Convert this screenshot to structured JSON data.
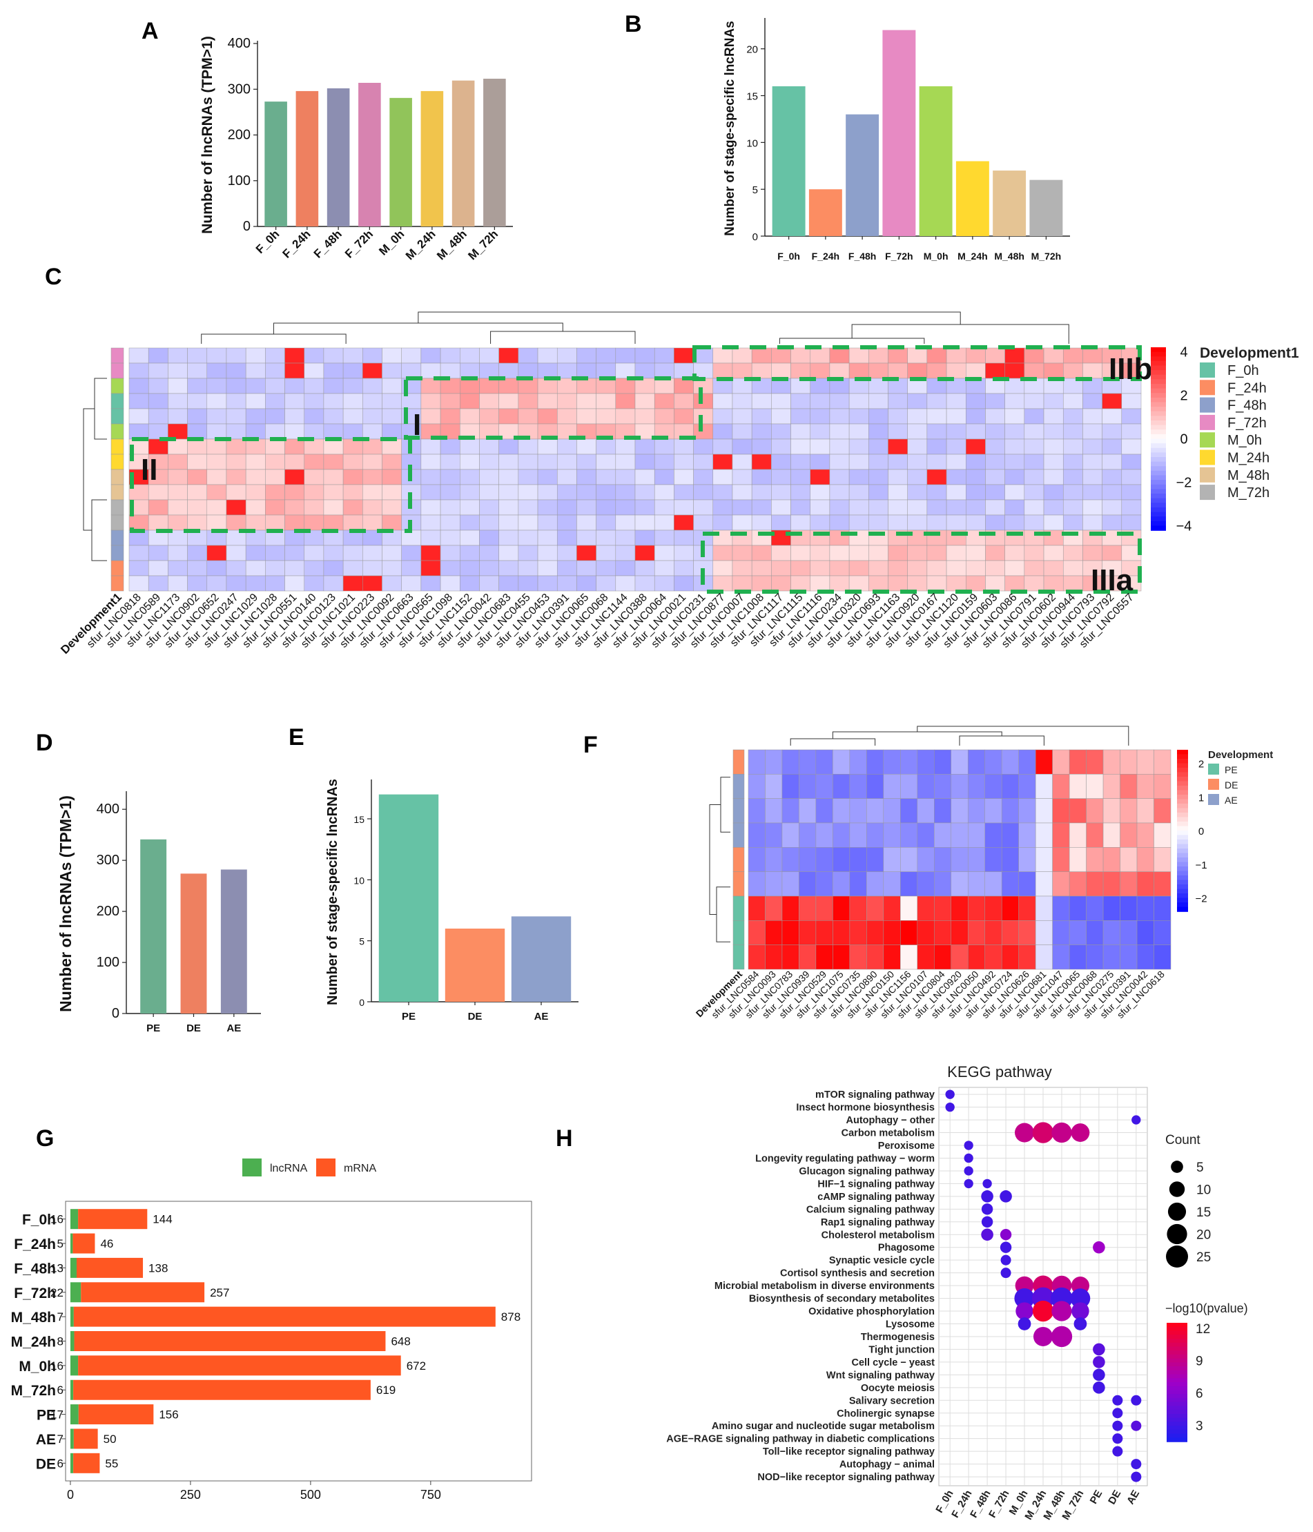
{
  "colors": {
    "stage": {
      "F_0h": "#66c2a5",
      "F_24h": "#fc8d62",
      "F_48h": "#8da0cb",
      "F_72h": "#e78ac3",
      "M_0h": "#a6d854",
      "M_24h": "#ffd92f",
      "M_48h": "#e5c494",
      "M_72h": "#b3b3b3"
    },
    "A": [
      "#6aae8e",
      "#ee8060",
      "#8c8eb1",
      "#d783b0",
      "#91c45a",
      "#f1c44c",
      "#dcb38e",
      "#ab9e99"
    ],
    "D": [
      "#6aae8e",
      "#ee8060",
      "#8c8eb1"
    ],
    "lncRNA": "#4caf50",
    "mRNA": "#ff5722",
    "cluster_box": "#20b050"
  },
  "chart_data": [
    {
      "panel": "A",
      "type": "bar",
      "categories": [
        "F_0h",
        "F_24h",
        "F_48h",
        "F_72h",
        "M_0h",
        "M_24h",
        "M_48h",
        "M_72h"
      ],
      "values": [
        273,
        296,
        302,
        314,
        281,
        296,
        319,
        323
      ],
      "ylabel": "Number of lncRNAs (TPM>1)",
      "ylim": [
        0,
        400
      ],
      "yticks": [
        "0",
        "100",
        "200",
        "300",
        "400"
      ]
    },
    {
      "panel": "B",
      "type": "bar",
      "categories": [
        "F_0h",
        "F_24h",
        "F_48h",
        "F_72h",
        "M_0h",
        "M_24h",
        "M_48h",
        "M_72h"
      ],
      "values": [
        16,
        5,
        13,
        22,
        16,
        8,
        7,
        6
      ],
      "ylabel": "Number of stage-specific lncRNAs",
      "ylim": [
        0,
        23
      ],
      "yticks": [
        "0",
        "5",
        "10",
        "15",
        "20"
      ]
    },
    {
      "panel": "C",
      "type": "heatmap",
      "annotation_label": "Development1",
      "legend_title": "Development1",
      "legend_items": [
        "F_0h",
        "F_24h",
        "F_48h",
        "F_72h",
        "M_0h",
        "M_24h",
        "M_48h",
        "M_72h"
      ],
      "scale_ticks": [
        "4",
        "2",
        "0",
        "−2",
        "−4"
      ],
      "row_groups": [
        "F_72h",
        "F_72h",
        "M_0h",
        "F_0h",
        "F_0h",
        "M_0h",
        "M_24h",
        "M_24h",
        "M_48h",
        "M_48h",
        "M_72h",
        "M_72h",
        "F_48h",
        "F_48h",
        "F_24h",
        "F_24h"
      ],
      "columns": [
        "sfur_LNC0818",
        "sfur_LNC0589",
        "sfur_LNC1173",
        "sfur_LNC0902",
        "sfur_LNC0652",
        "sfur_LNC0247",
        "sfur_LNC1029",
        "sfur_LNC1028",
        "sfur_LNC0551",
        "sfur_LNC0140",
        "sfur_LNC0123",
        "sfur_LNC1021",
        "sfur_LNC0223",
        "sfur_LNC0092",
        "sfur_LNC0663",
        "sfur_LNC0565",
        "sfur_LNC1098",
        "sfur_LNC1152",
        "sfur_LNC0042",
        "sfur_LNC0683",
        "sfur_LNC0455",
        "sfur_LNC0453",
        "sfur_LNC0391",
        "sfur_LNC0065",
        "sfur_LNC0068",
        "sfur_LNC1144",
        "sfur_LNC0388",
        "sfur_LNC0064",
        "sfur_LNC0021",
        "sfur_LNC0231",
        "sfur_LNC0877",
        "sfur_LNC0007",
        "sfur_LNC1008",
        "sfur_LNC1117",
        "sfur_LNC1115",
        "sfur_LNC1116",
        "sfur_LNC0234",
        "sfur_LNC0320",
        "sfur_LNC0693",
        "sfur_LNC1163",
        "sfur_LNC0920",
        "sfur_LNC0167",
        "sfur_LNC1120",
        "sfur_LNC0159",
        "sfur_LNC0603",
        "sfur_LNC0086",
        "sfur_LNC0791",
        "sfur_LNC0602",
        "sfur_LNC0944",
        "sfur_LNC0793",
        "sfur_LNC0792",
        "sfur_LNC0557"
      ],
      "clusters": [
        "I",
        "II",
        "IIIa",
        "IIIb"
      ]
    },
    {
      "panel": "D",
      "type": "bar",
      "categories": [
        "PE",
        "DE",
        "AE"
      ],
      "values": [
        341,
        274,
        282
      ],
      "ylabel": "Number of lncRNAs (TPM>1)",
      "ylim": [
        0,
        430
      ],
      "yticks": [
        "0",
        "100",
        "200",
        "300",
        "400"
      ]
    },
    {
      "panel": "E",
      "type": "bar",
      "categories": [
        "PE",
        "DE",
        "AE"
      ],
      "values": [
        17,
        6,
        7
      ],
      "ylabel": "Number of stage-specific lncRNAs",
      "ylim": [
        0,
        18
      ],
      "yticks": [
        "0",
        "5",
        "10",
        "15"
      ]
    },
    {
      "panel": "F",
      "type": "heatmap",
      "annotation_label": "Development",
      "legend_title": "Development",
      "legend_items": [
        "PE",
        "DE",
        "AE"
      ],
      "scale_ticks": [
        "2",
        "1",
        "0",
        "−1",
        "−2"
      ],
      "row_groups": [
        "DE",
        "AE",
        "AE",
        "AE",
        "DE",
        "DE",
        "PE",
        "PE",
        "PE"
      ],
      "columns": [
        "sfur_LNC0584",
        "sfur_LNC0093",
        "sfur_LNC0783",
        "sfur_LNC0939",
        "sfur_LNC0529",
        "sfur_LNC1075",
        "sfur_LNC0735",
        "sfur_LNC0890",
        "sfur_LNC0150",
        "sfur_LNC1156",
        "sfur_LNC0107",
        "sfur_LNC0804",
        "sfur_LNC0920",
        "sfur_LNC0050",
        "sfur_LNC0492",
        "sfur_LNC0724",
        "sfur_LNC0626",
        "sfur_LNC0681",
        "sfur_LNC1047",
        "sfur_LNC0065",
        "sfur_LNC0068",
        "sfur_LNC0275",
        "sfur_LNC0391",
        "sfur_LNC0042",
        "sfur_LNC0618"
      ]
    },
    {
      "panel": "G",
      "type": "bar",
      "orientation": "horizontal",
      "legend": [
        "lncRNA",
        "mRNA"
      ],
      "categories": [
        "F_0h",
        "F_24h",
        "F_48h",
        "F_72h",
        "M_48h",
        "M_24h",
        "M_0h",
        "M_72h",
        "PE",
        "AE",
        "DE"
      ],
      "series": [
        {
          "name": "lncRNA",
          "values": [
            16,
            5,
            13,
            22,
            7,
            8,
            16,
            6,
            17,
            7,
            6
          ]
        },
        {
          "name": "mRNA",
          "values": [
            144,
            46,
            138,
            257,
            878,
            648,
            672,
            619,
            156,
            50,
            55
          ]
        }
      ],
      "xlim": [
        -10,
        960
      ],
      "xticks": [
        "0",
        "250",
        "500",
        "750"
      ]
    },
    {
      "panel": "H",
      "type": "scatter",
      "title": "KEGG pathway",
      "x": [
        "F_0h",
        "F_24h",
        "F_48h",
        "F_72h",
        "M_0h",
        "M_24h",
        "M_48h",
        "M_72h",
        "PE",
        "DE",
        "AE"
      ],
      "pathways": [
        "mTOR signaling pathway",
        "Insect hormone biosynthesis",
        "Autophagy − other",
        "Carbon metabolism",
        "Peroxisome",
        "Longevity regulating pathway − worm",
        "Glucagon signaling pathway",
        "HIF−1 signaling pathway",
        "cAMP signaling pathway",
        "Calcium signaling pathway",
        "Rap1 signaling pathway",
        "Cholesterol metabolism",
        "Phagosome",
        "Synaptic vesicle cycle",
        "Cortisol synthesis and secretion",
        "Microbial metabolism in diverse environments",
        "Biosynthesis of secondary metabolites",
        "Oxidative phosphorylation",
        "Lysosome",
        "Thermogenesis",
        "Tight junction",
        "Cell cycle − yeast",
        "Wnt signaling pathway",
        "Oocyte meiosis",
        "Salivary secretion",
        "Cholinergic synapse",
        "Amino sugar and nucleotide sugar metabolism",
        "AGE−RAGE signaling pathway in diabetic complications",
        "Toll−like receptor signaling pathway",
        "Autophagy − animal",
        "NOD−like receptor signaling pathway"
      ],
      "points": [
        [
          0,
          0,
          2,
          3
        ],
        [
          0,
          1,
          2,
          3
        ],
        [
          10,
          2,
          2,
          3
        ],
        [
          4,
          3,
          18,
          9
        ],
        [
          5,
          3,
          22,
          10
        ],
        [
          6,
          3,
          20,
          9
        ],
        [
          7,
          3,
          16,
          9
        ],
        [
          1,
          4,
          2,
          3
        ],
        [
          1,
          5,
          2,
          3
        ],
        [
          1,
          6,
          2,
          3
        ],
        [
          1,
          7,
          2,
          3
        ],
        [
          2,
          7,
          2,
          3
        ],
        [
          2,
          8,
          5,
          3
        ],
        [
          3,
          8,
          5,
          3
        ],
        [
          2,
          9,
          4,
          3
        ],
        [
          2,
          10,
          4,
          3
        ],
        [
          2,
          11,
          5,
          4
        ],
        [
          3,
          11,
          4,
          6
        ],
        [
          8,
          12,
          5,
          7
        ],
        [
          3,
          12,
          4,
          3
        ],
        [
          3,
          13,
          3,
          3
        ],
        [
          3,
          14,
          3,
          3
        ],
        [
          4,
          15,
          16,
          9
        ],
        [
          5,
          15,
          20,
          10
        ],
        [
          6,
          15,
          19,
          9
        ],
        [
          7,
          15,
          15,
          9
        ],
        [
          4,
          16,
          20,
          3
        ],
        [
          5,
          16,
          25,
          4
        ],
        [
          6,
          16,
          24,
          3
        ],
        [
          7,
          16,
          19,
          3
        ],
        [
          4,
          17,
          14,
          6
        ],
        [
          5,
          17,
          22,
          12
        ],
        [
          6,
          17,
          20,
          8
        ],
        [
          7,
          17,
          14,
          5
        ],
        [
          4,
          18,
          6,
          3
        ],
        [
          7,
          18,
          6,
          3
        ],
        [
          5,
          19,
          18,
          8
        ],
        [
          6,
          19,
          22,
          8
        ],
        [
          8,
          20,
          5,
          4
        ],
        [
          8,
          21,
          5,
          4
        ],
        [
          8,
          22,
          5,
          3
        ],
        [
          8,
          23,
          5,
          3
        ],
        [
          9,
          24,
          3,
          3
        ],
        [
          10,
          24,
          3,
          3
        ],
        [
          9,
          25,
          3,
          3
        ],
        [
          9,
          26,
          3,
          3
        ],
        [
          10,
          26,
          3,
          4
        ],
        [
          9,
          27,
          3,
          3
        ],
        [
          9,
          28,
          3,
          3
        ],
        [
          10,
          29,
          3,
          3
        ],
        [
          10,
          30,
          3,
          3
        ]
      ],
      "point_format": "[x_index, pathway_index, count, neg_log10_pvalue]",
      "count_legend_title": "Count",
      "count_legend": [
        "5",
        "10",
        "15",
        "20",
        "25"
      ],
      "pvalue_legend_title": "−log10(pvalue)",
      "pvalue_ticks": [
        "12",
        "9",
        "6",
        "3"
      ]
    }
  ],
  "panel_labels": {
    "A": "A",
    "B": "B",
    "C": "C",
    "D": "D",
    "E": "E",
    "F": "F",
    "G": "G",
    "H": "H"
  }
}
